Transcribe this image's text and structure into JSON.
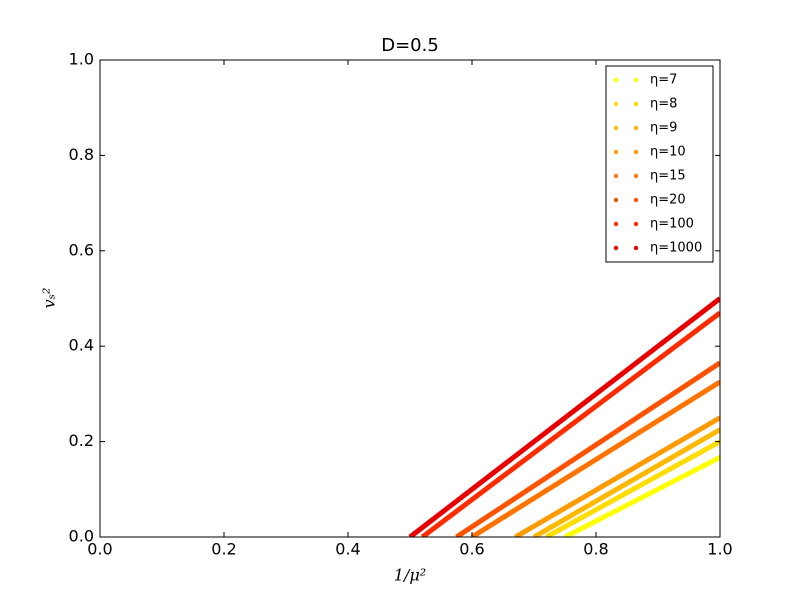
{
  "chart_data": {
    "type": "line",
    "title": "D=0.5",
    "xlabel": "1/μ²",
    "ylabel": "vₛ²",
    "series": [
      {
        "name": "η=7",
        "color": "#ffff00",
        "x": [
          0.75,
          1.0
        ],
        "values": [
          0,
          0.167
        ]
      },
      {
        "name": "η=8",
        "color": "#ffdd00",
        "x": [
          0.72,
          1.0
        ],
        "values": [
          0,
          0.2
        ]
      },
      {
        "name": "η=9",
        "color": "#ffb800",
        "x": [
          0.7,
          1.0
        ],
        "values": [
          0,
          0.225
        ]
      },
      {
        "name": "η=10",
        "color": "#ff9a00",
        "x": [
          0.67,
          1.0
        ],
        "values": [
          0,
          0.25
        ]
      },
      {
        "name": "η=15",
        "color": "#ff7400",
        "x": [
          0.6,
          1.0
        ],
        "values": [
          0,
          0.325
        ]
      },
      {
        "name": "η=20",
        "color": "#ff5200",
        "x": [
          0.575,
          1.0
        ],
        "values": [
          0,
          0.365
        ]
      },
      {
        "name": "η=100",
        "color": "#ff2c00",
        "x": [
          0.52,
          1.0
        ],
        "values": [
          0,
          0.47
        ]
      },
      {
        "name": "η=1000",
        "color": "#e80000",
        "x": [
          0.5,
          1.0
        ],
        "values": [
          0,
          0.5
        ]
      }
    ],
    "xlim": [
      0,
      1
    ],
    "ylim": [
      0,
      1
    ],
    "xticks": [
      {
        "value": 0,
        "label": "0.0"
      },
      {
        "value": 0.2,
        "label": "0.2"
      },
      {
        "value": 0.4,
        "label": "0.4"
      },
      {
        "value": 0.6,
        "label": "0.6"
      },
      {
        "value": 0.8,
        "label": "0.8"
      },
      {
        "value": 1,
        "label": "1.0"
      }
    ],
    "yticks": [
      {
        "value": 0,
        "label": "0.0"
      },
      {
        "value": 0.2,
        "label": "0.2"
      },
      {
        "value": 0.4,
        "label": "0.4"
      },
      {
        "value": 0.6,
        "label": "0.6"
      },
      {
        "value": 0.8,
        "label": "0.8"
      },
      {
        "value": 1,
        "label": "1.0"
      }
    ],
    "grid": false,
    "legend": "upper right"
  }
}
